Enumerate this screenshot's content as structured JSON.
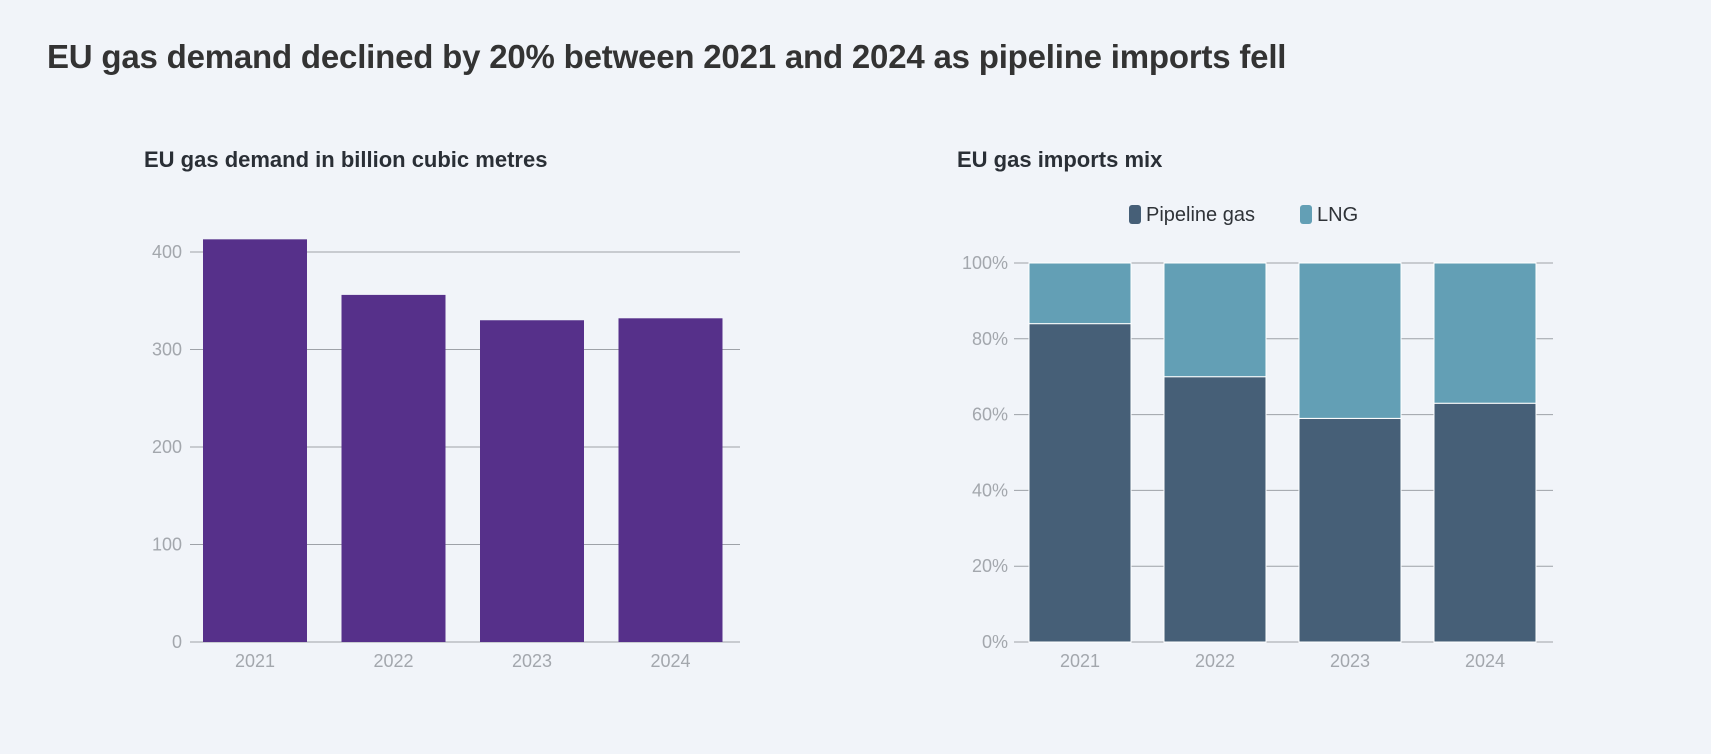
{
  "headline": "EU gas demand declined by 20% between 2021 and 2024 as pipeline imports fell",
  "colors": {
    "background": "#f1f4f9",
    "demand_bar": "#56308a",
    "pipeline": "#465f77",
    "lng": "#639fb5",
    "grid": "#9ea2a8",
    "tick": "#a3a7ad"
  },
  "chart_data": [
    {
      "type": "bar",
      "title": "EU gas demand in billion cubic metres",
      "categories": [
        "2021",
        "2022",
        "2023",
        "2024"
      ],
      "values": [
        413,
        356,
        330,
        332
      ],
      "ylim": [
        0,
        400
      ],
      "yticks": [
        0,
        100,
        200,
        300,
        400
      ],
      "ytick_labels": [
        "0",
        "100",
        "200",
        "300",
        "400"
      ],
      "xlabel": "",
      "ylabel": "",
      "grid": true
    },
    {
      "type": "bar",
      "stacked": true,
      "title": "EU gas imports mix",
      "categories": [
        "2021",
        "2022",
        "2023",
        "2024"
      ],
      "series": [
        {
          "name": "Pipeline gas",
          "values": [
            84,
            70,
            59,
            63
          ]
        },
        {
          "name": "LNG",
          "values": [
            16,
            30,
            41,
            37
          ]
        }
      ],
      "ylim": [
        0,
        100
      ],
      "yticks": [
        0,
        20,
        40,
        60,
        80,
        100
      ],
      "ytick_labels": [
        "0%",
        "20%",
        "40%",
        "60%",
        "80%",
        "100%"
      ],
      "legend": "top",
      "xlabel": "",
      "ylabel": "",
      "grid": true
    }
  ]
}
